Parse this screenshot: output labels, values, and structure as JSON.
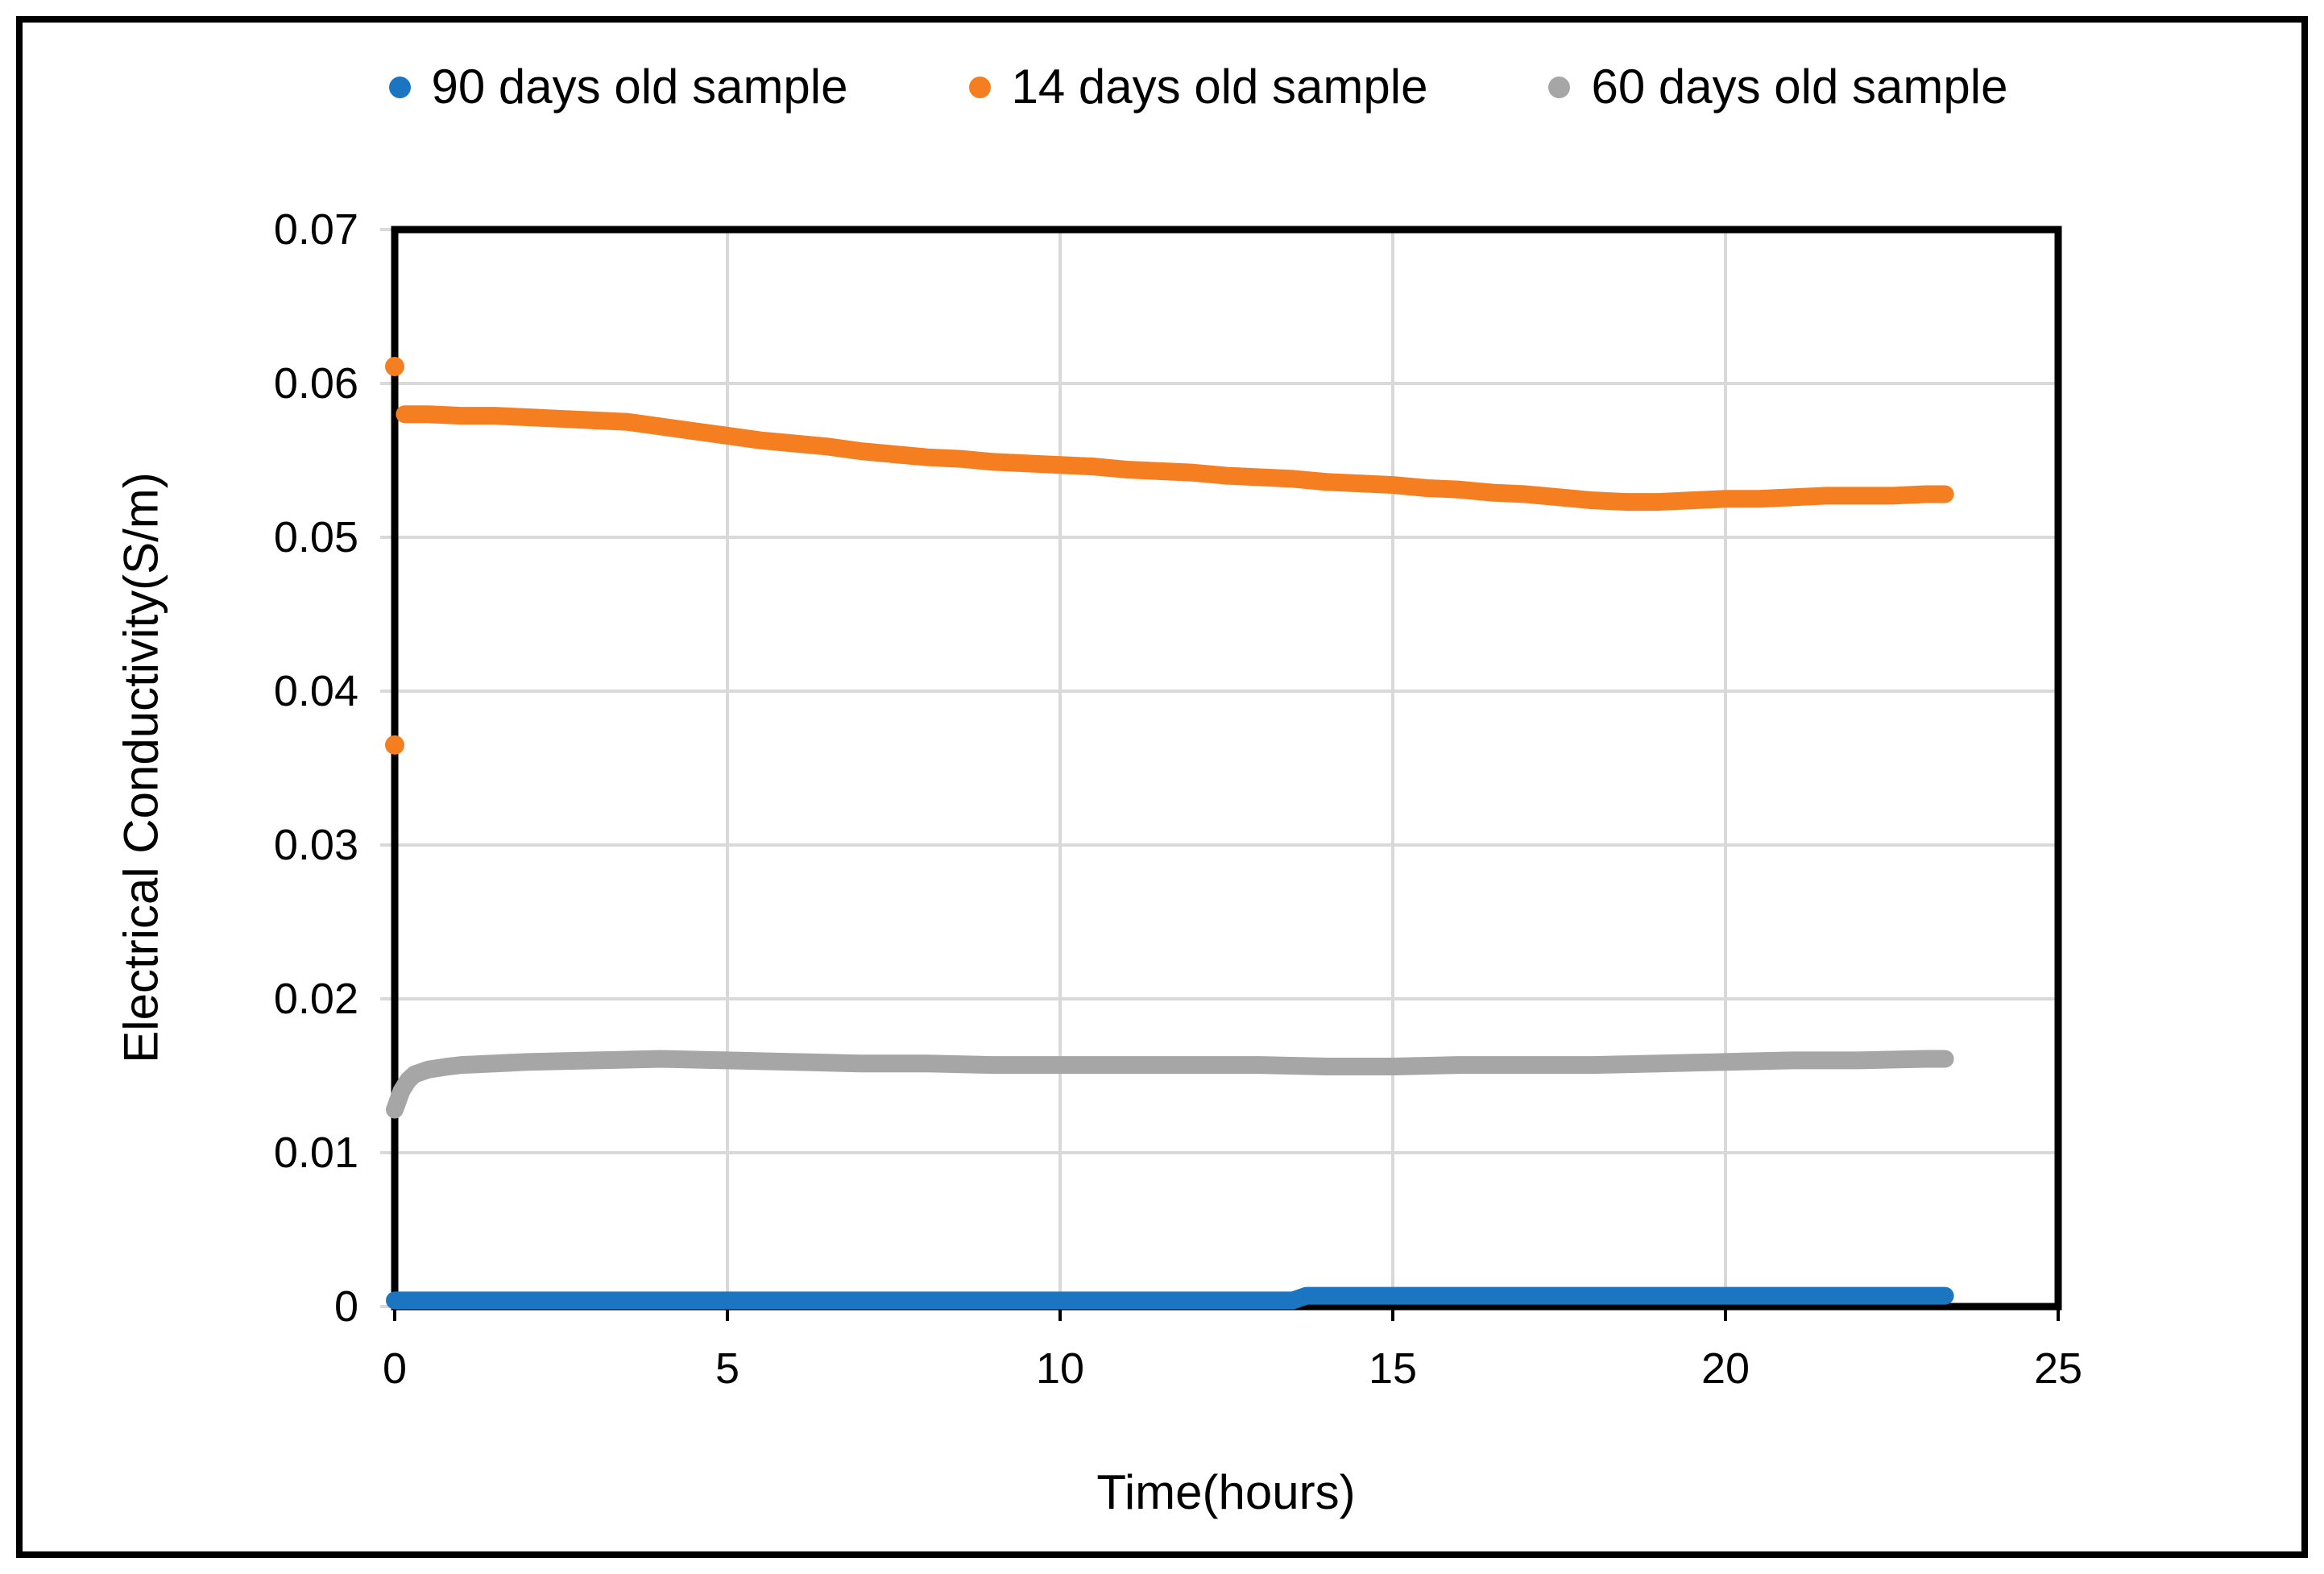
{
  "chart_data": {
    "type": "scatter",
    "title": "",
    "xlabel": "Time(hours)",
    "ylabel": "Electrical Conductivity(S/m)",
    "xlim": [
      0,
      25
    ],
    "ylim": [
      0,
      0.07
    ],
    "grid": true,
    "grid_color": "#D9D9D9",
    "axis_color": "#000000",
    "legend_position": "top-center",
    "x_ticks": [
      {
        "value": 0,
        "label": "0"
      },
      {
        "value": 5,
        "label": "5"
      },
      {
        "value": 10,
        "label": "10"
      },
      {
        "value": 15,
        "label": "15"
      },
      {
        "value": 20,
        "label": "20"
      },
      {
        "value": 25,
        "label": "25"
      }
    ],
    "y_ticks": [
      {
        "value": 0,
        "label": "0"
      },
      {
        "value": 0.01,
        "label": "0.01"
      },
      {
        "value": 0.02,
        "label": "0.02"
      },
      {
        "value": 0.03,
        "label": "0.03"
      },
      {
        "value": 0.04,
        "label": "0.04"
      },
      {
        "value": 0.05,
        "label": "0.05"
      },
      {
        "value": 0.06,
        "label": "0.06"
      },
      {
        "value": 0.07,
        "label": "0.07"
      }
    ],
    "series": [
      {
        "name": "90 days old sample",
        "color": "#1B75C0",
        "points": [
          [
            0,
            0.0004
          ],
          [
            1,
            0.0004
          ],
          [
            2,
            0.0004
          ],
          [
            3,
            0.0004
          ],
          [
            4,
            0.0004
          ],
          [
            5,
            0.0004
          ],
          [
            6,
            0.0004
          ],
          [
            7,
            0.0004
          ],
          [
            8,
            0.0004
          ],
          [
            9,
            0.0004
          ],
          [
            10,
            0.0004
          ],
          [
            11,
            0.0004
          ],
          [
            12,
            0.0004
          ],
          [
            13,
            0.0004
          ],
          [
            13.5,
            0.0004
          ],
          [
            13.7,
            0.0007
          ],
          [
            14,
            0.0007
          ],
          [
            15,
            0.0007
          ],
          [
            16,
            0.0007
          ],
          [
            17,
            0.0007
          ],
          [
            18,
            0.0007
          ],
          [
            19,
            0.0007
          ],
          [
            20,
            0.0007
          ],
          [
            21,
            0.0007
          ],
          [
            22,
            0.0007
          ],
          [
            23,
            0.0007
          ],
          [
            23.3,
            0.0007
          ]
        ],
        "outliers": []
      },
      {
        "name": "14 days old sample",
        "color": "#F57E20",
        "points": [
          [
            0.15,
            0.058
          ],
          [
            0.5,
            0.058
          ],
          [
            1,
            0.0579
          ],
          [
            1.5,
            0.0579
          ],
          [
            2,
            0.0578
          ],
          [
            2.5,
            0.0577
          ],
          [
            3,
            0.0576
          ],
          [
            3.5,
            0.0575
          ],
          [
            4,
            0.0572
          ],
          [
            4.5,
            0.0569
          ],
          [
            5,
            0.0566
          ],
          [
            5.5,
            0.0563
          ],
          [
            6,
            0.0561
          ],
          [
            6.5,
            0.0559
          ],
          [
            7,
            0.0556
          ],
          [
            7.5,
            0.0554
          ],
          [
            8,
            0.0552
          ],
          [
            8.5,
            0.0551
          ],
          [
            9,
            0.0549
          ],
          [
            9.5,
            0.0548
          ],
          [
            10,
            0.0547
          ],
          [
            10.5,
            0.0546
          ],
          [
            11,
            0.0544
          ],
          [
            11.5,
            0.0543
          ],
          [
            12,
            0.0542
          ],
          [
            12.5,
            0.054
          ],
          [
            13,
            0.0539
          ],
          [
            13.5,
            0.0538
          ],
          [
            14,
            0.0536
          ],
          [
            14.5,
            0.0535
          ],
          [
            15,
            0.0534
          ],
          [
            15.5,
            0.0532
          ],
          [
            16,
            0.0531
          ],
          [
            16.5,
            0.0529
          ],
          [
            17,
            0.0528
          ],
          [
            17.5,
            0.0526
          ],
          [
            18,
            0.0524
          ],
          [
            18.5,
            0.0523
          ],
          [
            19,
            0.0523
          ],
          [
            19.5,
            0.0524
          ],
          [
            20,
            0.0525
          ],
          [
            20.5,
            0.0525
          ],
          [
            21,
            0.0526
          ],
          [
            21.5,
            0.0527
          ],
          [
            22,
            0.0527
          ],
          [
            22.5,
            0.0527
          ],
          [
            23,
            0.0528
          ],
          [
            23.3,
            0.0528
          ]
        ],
        "outliers": [
          [
            0,
            0.0611
          ],
          [
            0,
            0.0365
          ]
        ]
      },
      {
        "name": "60 days old sample",
        "color": "#A6A6A6",
        "points": [
          [
            0,
            0.0128
          ],
          [
            0.1,
            0.014
          ],
          [
            0.2,
            0.0147
          ],
          [
            0.3,
            0.0151
          ],
          [
            0.5,
            0.0154
          ],
          [
            0.8,
            0.0156
          ],
          [
            1,
            0.0157
          ],
          [
            1.5,
            0.0158
          ],
          [
            2,
            0.0159
          ],
          [
            3,
            0.016
          ],
          [
            4,
            0.0161
          ],
          [
            5,
            0.016
          ],
          [
            6,
            0.0159
          ],
          [
            7,
            0.0158
          ],
          [
            8,
            0.0158
          ],
          [
            9,
            0.0157
          ],
          [
            10,
            0.0157
          ],
          [
            11,
            0.0157
          ],
          [
            12,
            0.0157
          ],
          [
            13,
            0.0157
          ],
          [
            14,
            0.0156
          ],
          [
            15,
            0.0156
          ],
          [
            16,
            0.0157
          ],
          [
            17,
            0.0157
          ],
          [
            18,
            0.0157
          ],
          [
            19,
            0.0158
          ],
          [
            20,
            0.0159
          ],
          [
            21,
            0.016
          ],
          [
            22,
            0.016
          ],
          [
            23,
            0.0161
          ],
          [
            23.3,
            0.0161
          ]
        ],
        "outliers": []
      }
    ]
  }
}
